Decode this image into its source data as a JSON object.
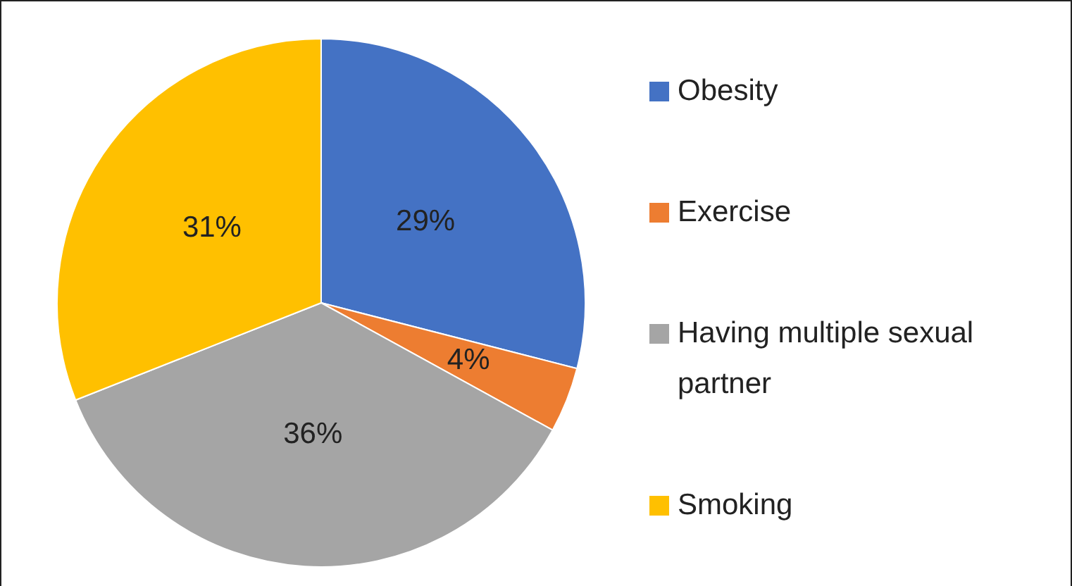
{
  "chart_data": {
    "type": "pie",
    "categories": [
      "Obesity",
      "Exercise",
      "Having multiple sexual partner",
      "Smoking"
    ],
    "values": [
      29,
      4,
      36,
      31
    ],
    "colors": [
      "#4472c4",
      "#ed7d31",
      "#a5a5a5",
      "#ffc000"
    ],
    "value_labels": [
      "29%",
      "4%",
      "36%",
      "31%"
    ],
    "legend": "right"
  }
}
